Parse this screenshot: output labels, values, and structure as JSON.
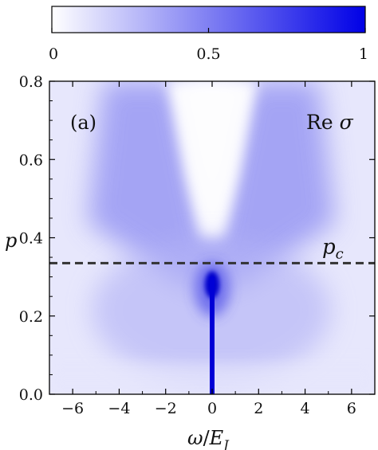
{
  "chart_data": {
    "type": "heatmap",
    "panel_label": "(a)",
    "quantity_label": "Re σ",
    "xlabel": "ω/E_J",
    "ylabel": "p",
    "xlim": [
      -7,
      7
    ],
    "ylim": [
      0,
      0.8
    ],
    "x_ticks": [
      -6,
      -4,
      -2,
      0,
      2,
      4,
      6
    ],
    "x_tick_labels": [
      "−6",
      "−4",
      "−2",
      "0",
      "2",
      "4",
      "6"
    ],
    "y_ticks": [
      0.0,
      0.2,
      0.4,
      0.6,
      0.8
    ],
    "y_tick_labels": [
      "0.0",
      "0.2",
      "0.4",
      "0.6",
      "0.8"
    ],
    "colorbar": {
      "range": [
        0,
        1
      ],
      "ticks": [
        0,
        0.5,
        1
      ],
      "tick_labels": [
        "0",
        "0.5",
        "1"
      ],
      "color_low": "#ffffff",
      "color_high": "#0000e6"
    },
    "reference_line": {
      "y": 0.335,
      "label": "p_c",
      "style": "dashed",
      "color": "#333333"
    },
    "features": [
      {
        "description": "narrow vertical peak at zero frequency",
        "x": 0,
        "y_range": [
          0,
          0.3
        ],
        "intensity": 1.0
      },
      {
        "description": "bright blob",
        "x": 0,
        "y": 0.28,
        "intensity": 1.0
      },
      {
        "description": "V-shaped arms",
        "x_at_top": [
          -3.5,
          3.5
        ],
        "intensity": 0.45
      }
    ],
    "grid": false,
    "legend": "none"
  }
}
